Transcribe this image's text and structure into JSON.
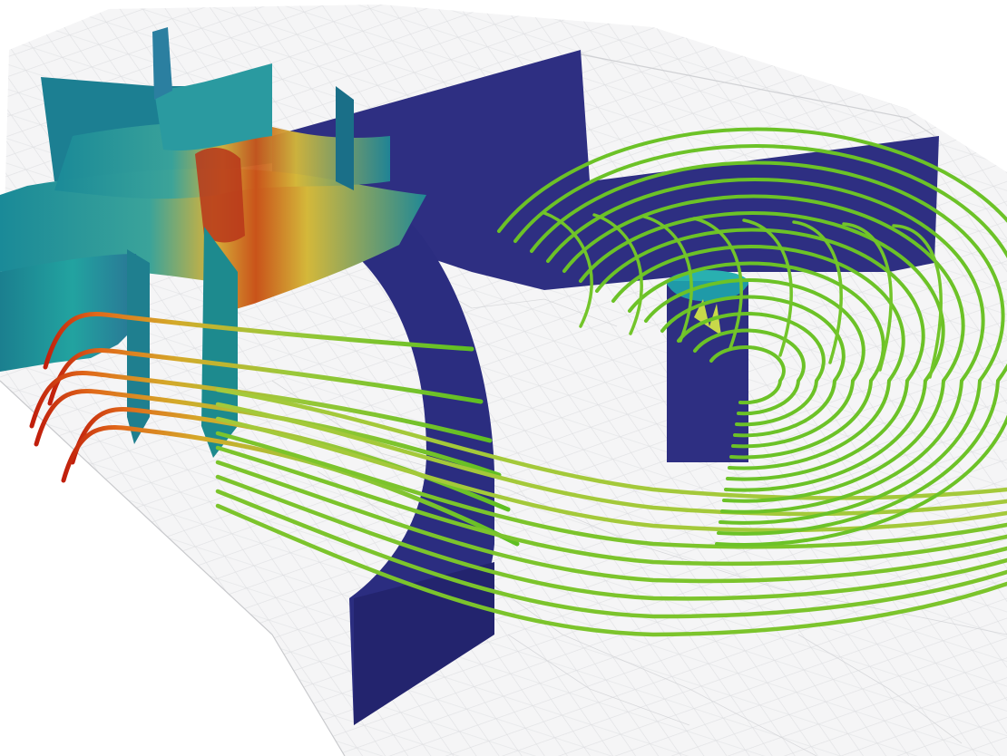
{
  "scene": {
    "background_color": "#ffffff",
    "domain_shell_color": "#e9e9ea",
    "mesh_color": "#cfd0d2",
    "surface_colormap": [
      "#2d2f7e",
      "#1f8f9a",
      "#5fb38a",
      "#d8c03a",
      "#e07a1f",
      "#b32414"
    ],
    "streamline_colormap": [
      "#c01e0c",
      "#e0691a",
      "#d4a92a",
      "#9cc83a",
      "#5fbf22"
    ],
    "cut_surface_icon": "curved-slice",
    "streamline_icon": "tube-streamline"
  }
}
